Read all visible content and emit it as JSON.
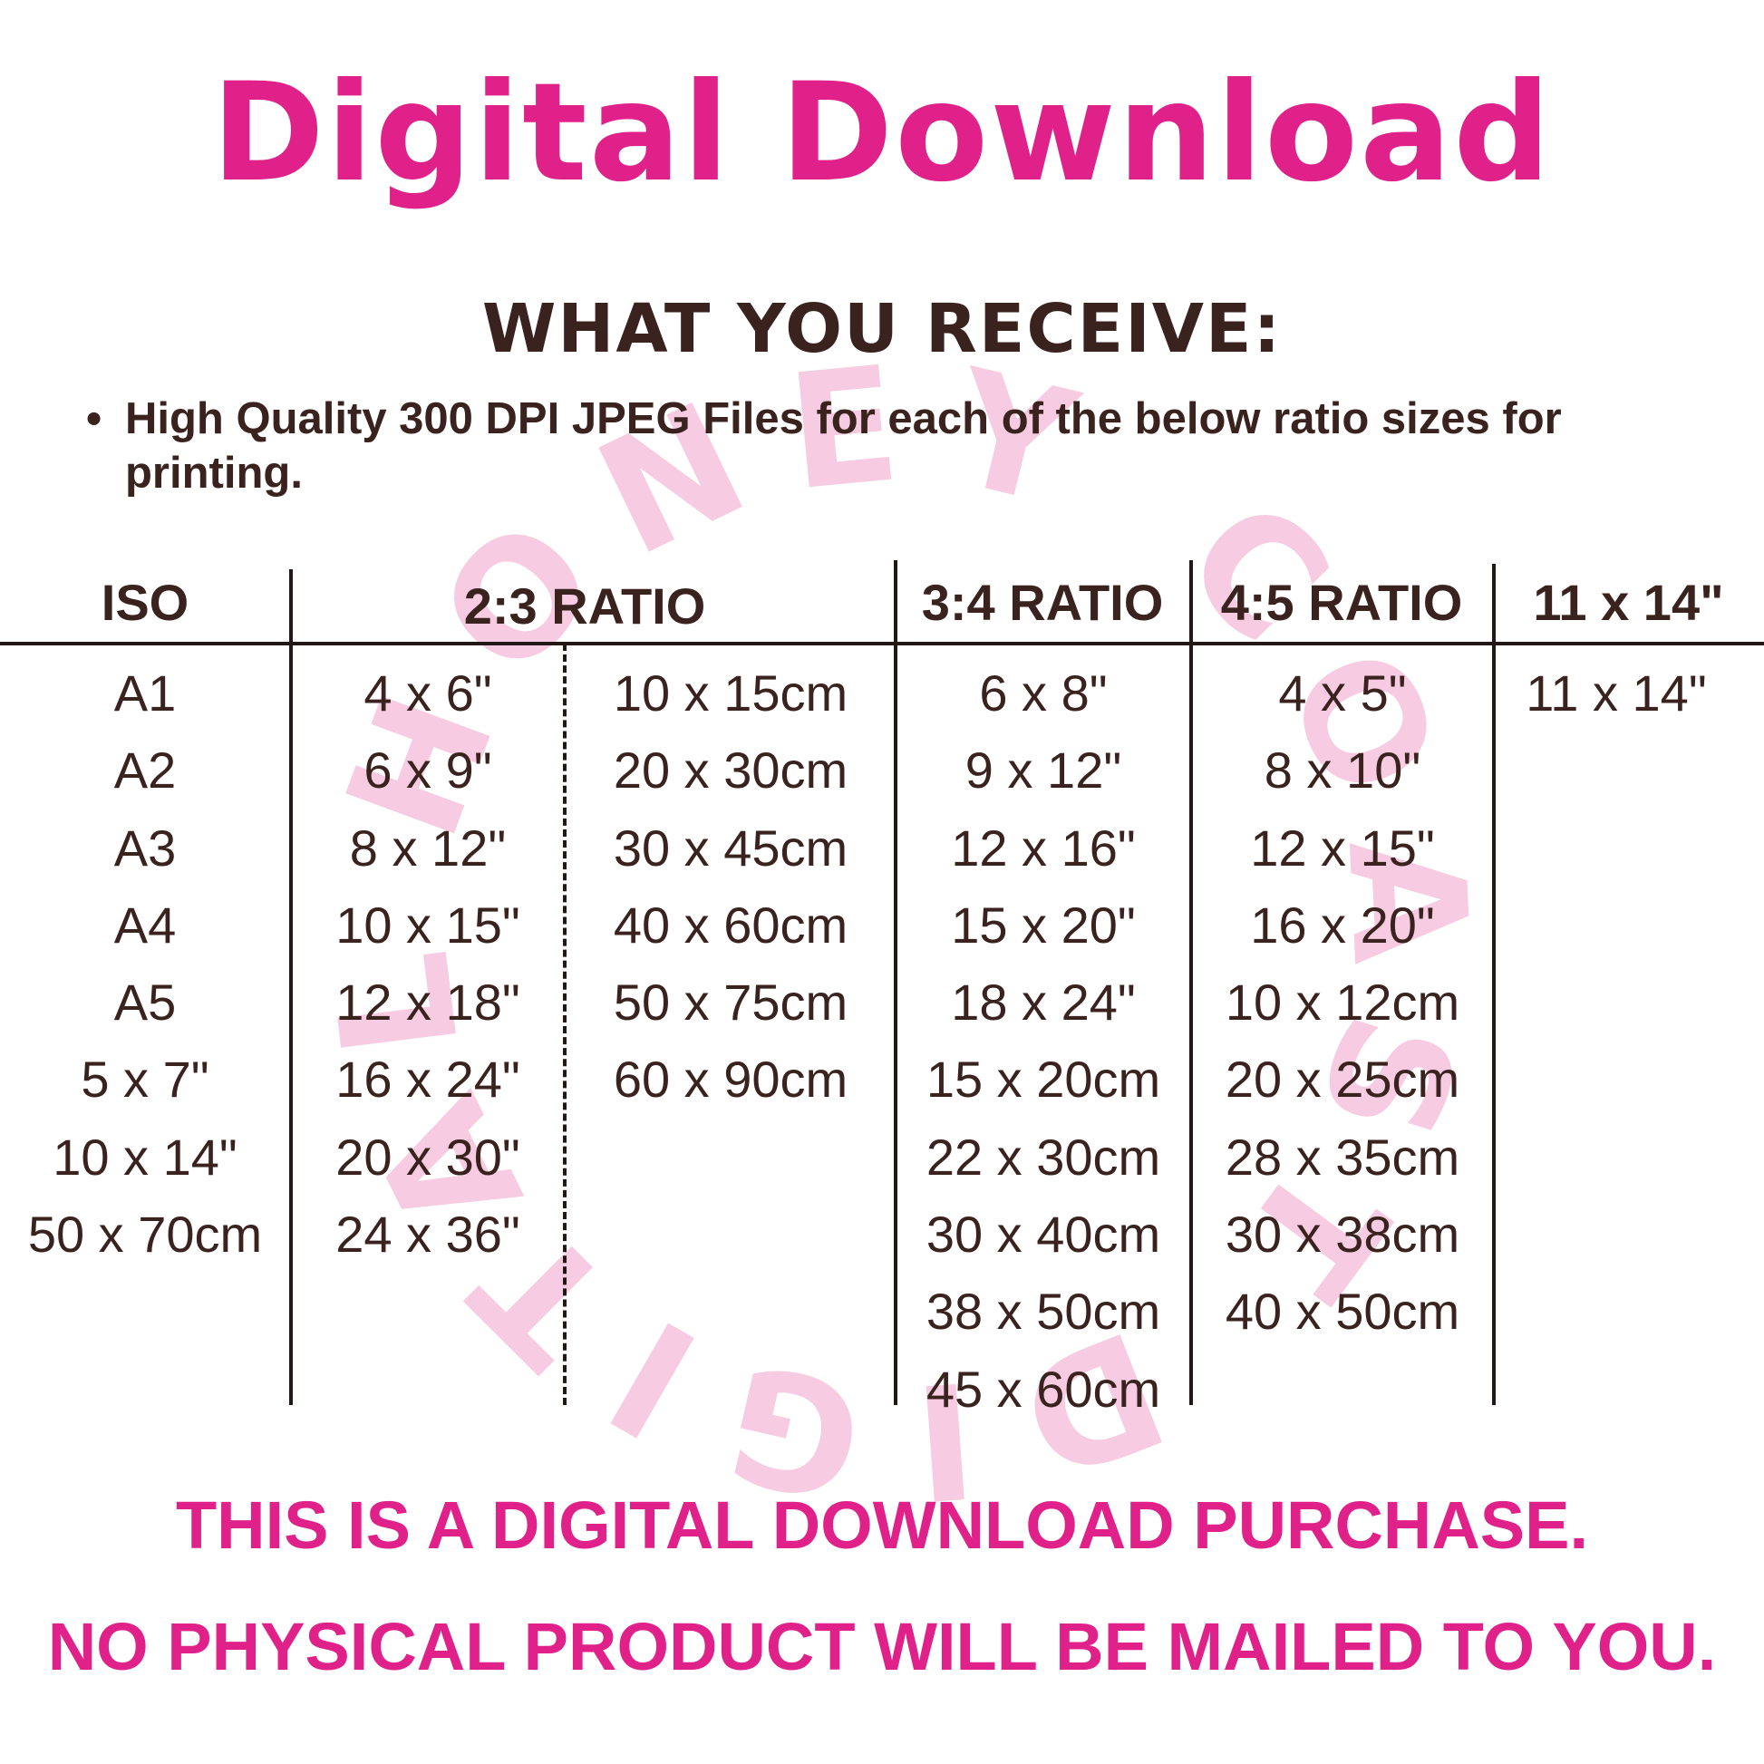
{
  "title": "Digital Download",
  "subtitle": "WHAT YOU RECEIVE:",
  "bullet": {
    "icon": "bullet-dot",
    "text": "High Quality 300 DPI JPEG Files for each of the below ratio sizes for printing."
  },
  "watermark": {
    "text": "HONEY COAST DIGITAL",
    "color": "#f7cbe1"
  },
  "colors": {
    "accent": "#e0218a",
    "text": "#3a231f"
  },
  "table": {
    "headers": {
      "iso": "ISO",
      "ratio_2_3": "2:3 RATIO",
      "ratio_3_4": "3:4 RATIO",
      "ratio_4_5": "4:5 RATIO",
      "size_11x14": "11 x 14\""
    },
    "iso": [
      "A1",
      "A2",
      "A3",
      "A4",
      "A5",
      "5 x 7\"",
      "10 x 14\"",
      "50 x 70cm"
    ],
    "ratio_2_3_in": [
      "4 x 6\"",
      "6 x 9\"",
      "8 x 12\"",
      "10 x 15\"",
      "12 x 18\"",
      "16 x 24\"",
      "20 x 30\"",
      "24 x 36\""
    ],
    "ratio_2_3_cm": [
      "10 x 15cm",
      "20 x 30cm",
      "30 x 45cm",
      "40 x 60cm",
      "50 x 75cm",
      "60 x 90cm"
    ],
    "ratio_3_4": [
      "6 x 8\"",
      "9 x 12\"",
      "12 x 16\"",
      "15 x 20\"",
      "18 x 24\"",
      "15 x 20cm",
      "22 x 30cm",
      "30 x 40cm",
      "38 x 50cm",
      "45 x 60cm"
    ],
    "ratio_4_5": [
      "4 x 5\"",
      "8 x 10\"",
      "12 x 15\"",
      "16 x 20\"",
      "10 x 12cm",
      "20 x 25cm",
      "28 x 35cm",
      "30 x 38cm",
      "40 x 50cm"
    ],
    "size_11x14": [
      "11 x 14\""
    ]
  },
  "notice": {
    "line1": "THIS IS A DIGITAL DOWNLOAD PURCHASE.",
    "line2": "NO PHYSICAL PRODUCT WILL BE MAILED TO YOU."
  }
}
